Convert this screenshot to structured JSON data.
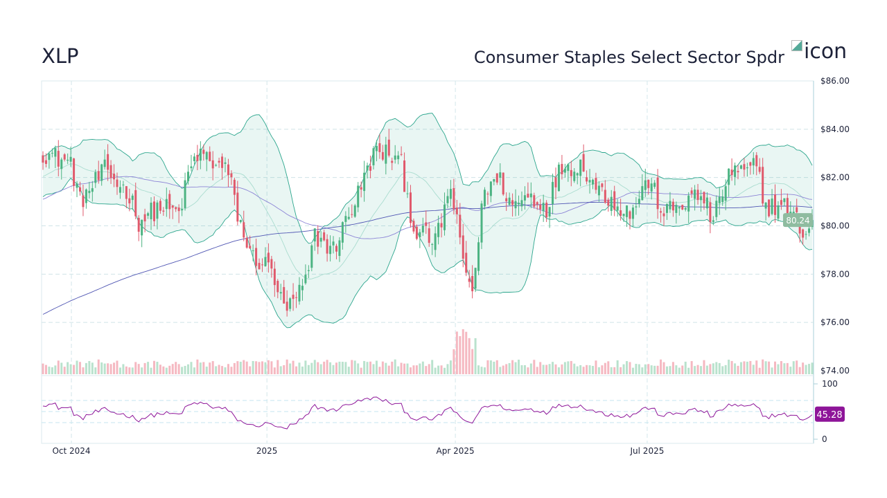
{
  "header": {
    "ticker": "XLP",
    "name": "Consumer Staples Select Sector Spdr",
    "logo_alt": "icon"
  },
  "colors": {
    "up": "#4cb382",
    "down": "#e0596b",
    "band": "#2aa58c",
    "band_mid": "#a9dccf",
    "sma50": "#8c84d6",
    "sma200": "#4f55b3",
    "rsi": "#8e1599",
    "price_label_bg": "#8fbca0"
  },
  "chart_data": {
    "type": "candlestick",
    "bars": 250,
    "anchors": [
      [
        0,
        83.05
      ],
      [
        9,
        82.6
      ],
      [
        12,
        81.0
      ],
      [
        20,
        82.3
      ],
      [
        28,
        81.3
      ],
      [
        31,
        80.2
      ],
      [
        38,
        80.8
      ],
      [
        44,
        80.5
      ],
      [
        48,
        82.5
      ],
      [
        51,
        83.0
      ],
      [
        60,
        82.2
      ],
      [
        63,
        80.5
      ],
      [
        67,
        78.8
      ],
      [
        74,
        78.2
      ],
      [
        78,
        76.5
      ],
      [
        81,
        76.8
      ],
      [
        85,
        77.6
      ],
      [
        88,
        79.6
      ],
      [
        94,
        79.0
      ],
      [
        98,
        80.2
      ],
      [
        103,
        81.6
      ],
      [
        107,
        83.0
      ],
      [
        112,
        83.0
      ],
      [
        116,
        82.5
      ],
      [
        120,
        79.9
      ],
      [
        127,
        79.3
      ],
      [
        132,
        81.6
      ],
      [
        136,
        78.5
      ],
      [
        139,
        77.3
      ],
      [
        143,
        81.6
      ],
      [
        148,
        81.9
      ],
      [
        152,
        80.8
      ],
      [
        157,
        81.3
      ],
      [
        163,
        80.8
      ],
      [
        168,
        82.5
      ],
      [
        175,
        82.5
      ],
      [
        179,
        81.6
      ],
      [
        185,
        81.0
      ],
      [
        190,
        80.5
      ],
      [
        196,
        81.9
      ],
      [
        201,
        80.5
      ],
      [
        208,
        81.0
      ],
      [
        213,
        81.3
      ],
      [
        217,
        80.2
      ],
      [
        222,
        82.2
      ],
      [
        228,
        82.2
      ],
      [
        231,
        82.5
      ],
      [
        234,
        80.8
      ],
      [
        240,
        80.8
      ],
      [
        244,
        80.2
      ],
      [
        247,
        79.6
      ],
      [
        249,
        80.24
      ]
    ],
    "indicators": [
      "Bollinger Bands (20, 2)",
      "SMA 50",
      "SMA 200",
      "RSI 14",
      "Volume"
    ],
    "y_axis": {
      "min": 74,
      "max": 86,
      "ticks": [
        "$74.00",
        "$76.00",
        "$78.00",
        "$80.00",
        "$82.00",
        "$84.00",
        "$86.00"
      ],
      "values": [
        74,
        76,
        78,
        80,
        82,
        84,
        86
      ]
    },
    "x_axis": {
      "ticks": [
        {
          "label": "Oct 2024",
          "bar": 9.2
        },
        {
          "label": "2025",
          "bar": 72.5
        },
        {
          "label": "Apr 2025",
          "bar": 133.5
        },
        {
          "label": "Jul 2025",
          "bar": 195.6
        }
      ]
    },
    "rsi_axis": {
      "min": 0,
      "max": 100,
      "ticks": [
        "0",
        "100"
      ],
      "values": [
        0,
        100
      ],
      "guides": [
        30,
        50,
        70
      ]
    },
    "last_price": "80.24",
    "last_rsi": "45.28"
  }
}
